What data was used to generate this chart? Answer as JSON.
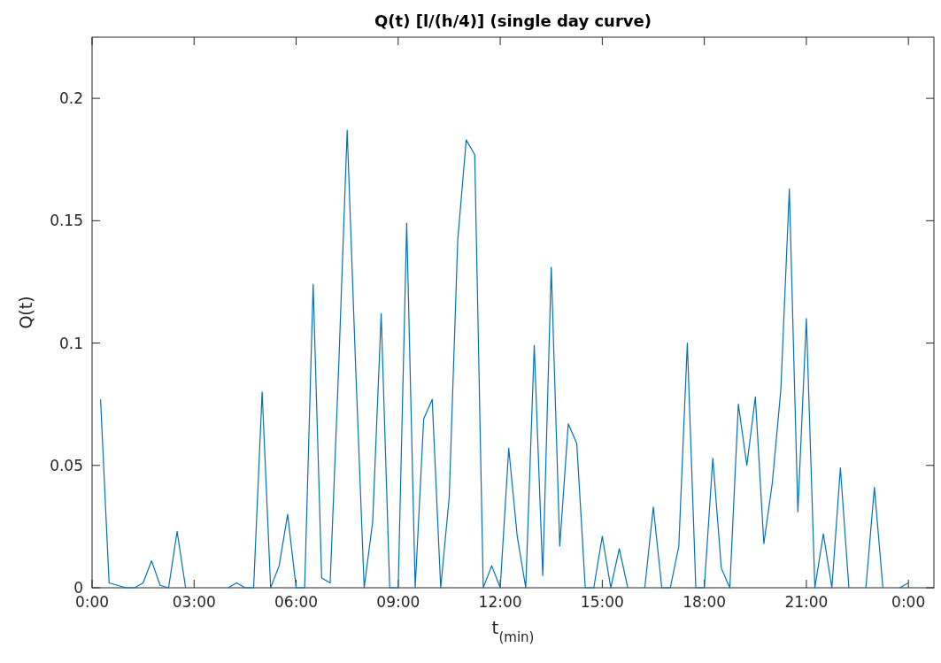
{
  "chart_data": {
    "type": "line",
    "title": "Q(t) [l/(h/4)] (single day curve)",
    "xlabel": "t$_{(min)}$",
    "ylabel": "Q(t)",
    "x": [
      0.25,
      0.5,
      0.75,
      1,
      1.25,
      1.5,
      1.75,
      2,
      2.25,
      2.5,
      2.75,
      3,
      3.25,
      3.5,
      3.75,
      4,
      4.25,
      4.5,
      4.75,
      5,
      5.25,
      5.5,
      5.75,
      6,
      6.25,
      6.5,
      6.75,
      7,
      7.25,
      7.5,
      7.75,
      8,
      8.25,
      8.5,
      8.75,
      9,
      9.25,
      9.5,
      9.75,
      10,
      10.25,
      10.5,
      10.75,
      11,
      11.25,
      11.5,
      11.75,
      12,
      12.25,
      12.5,
      12.75,
      13,
      13.25,
      13.5,
      13.75,
      14,
      14.25,
      14.5,
      14.75,
      15,
      15.25,
      15.5,
      15.75,
      16,
      16.25,
      16.5,
      16.75,
      17,
      17.25,
      17.5,
      17.75,
      18,
      18.25,
      18.5,
      18.75,
      19,
      19.25,
      19.5,
      19.75,
      20,
      20.25,
      20.5,
      20.75,
      21,
      21.25,
      21.5,
      21.75,
      22,
      22.25,
      22.5,
      22.75,
      23,
      23.25,
      23.5,
      23.75,
      24
    ],
    "series": [
      {
        "color": "#0072bd",
        "values": [
          0.077,
          0.002,
          0.001,
          0,
          0,
          0.002,
          0.011,
          0.001,
          0,
          0.023,
          0,
          null,
          null,
          null,
          null,
          0,
          0.002,
          0,
          0,
          0.08,
          0,
          0.009,
          0.03,
          0,
          0,
          0.124,
          0.004,
          0.002,
          0.09,
          0.187,
          0.09,
          0,
          0.027,
          0.112,
          0,
          0,
          0.149,
          0,
          0.069,
          0.077,
          0,
          0.037,
          0.142,
          0.183,
          0.177,
          0,
          0.009,
          0,
          0.057,
          0.021,
          0,
          0.099,
          0.005,
          0.131,
          0.017,
          0.067,
          0.059,
          0,
          0,
          0.021,
          0,
          0.016,
          0,
          null,
          0,
          0.033,
          0,
          0,
          0.017,
          0.1,
          0,
          0,
          0.053,
          0.008,
          0,
          0.075,
          0.05,
          0.078,
          0.018,
          0.043,
          0.081,
          0.163,
          0.031,
          0.11,
          0,
          0.022,
          0,
          0.049,
          0,
          null,
          0,
          0.041,
          0,
          null,
          0,
          0.002
        ]
      }
    ],
    "xlim": [
      0,
      24.75
    ],
    "ylim": [
      0,
      0.225
    ],
    "xticks": [
      {
        "value": 0,
        "label": "0:00"
      },
      {
        "value": 3,
        "label": "03:00"
      },
      {
        "value": 6,
        "label": "06:00"
      },
      {
        "value": 9,
        "label": "09:00"
      },
      {
        "value": 12,
        "label": "12:00"
      },
      {
        "value": 15,
        "label": "15:00"
      },
      {
        "value": 18,
        "label": "18:00"
      },
      {
        "value": 21,
        "label": "21:00"
      },
      {
        "value": 24,
        "label": "0:00"
      }
    ],
    "yticks": [
      0,
      0.05,
      0.1,
      0.15,
      0.2
    ],
    "grid": false,
    "marker": "none",
    "line_style": "solid"
  }
}
